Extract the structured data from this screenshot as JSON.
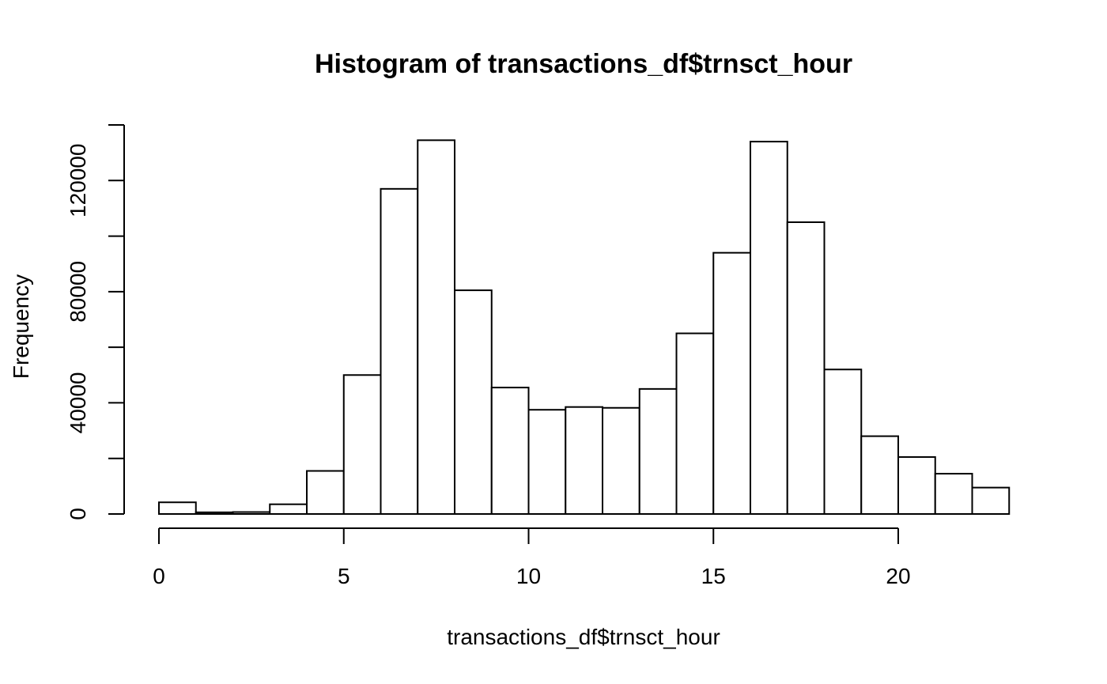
{
  "chart_data": {
    "type": "bar",
    "title": "Histogram of transactions_df$trnsct_hour",
    "xlabel": "transactions_df$trnsct_hour",
    "ylabel": "Frequency",
    "bin_edges": [
      0,
      1,
      2,
      3,
      4,
      5,
      6,
      7,
      8,
      9,
      10,
      11,
      12,
      13,
      14,
      15,
      16,
      17,
      18,
      19,
      20,
      21,
      22,
      23
    ],
    "values": [
      4200,
      600,
      700,
      3500,
      15500,
      50000,
      117000,
      134500,
      80500,
      45500,
      37500,
      38500,
      38200,
      45000,
      65000,
      94000,
      134000,
      105000,
      52000,
      28000,
      20500,
      14500,
      9500
    ],
    "xlim": [
      0,
      23
    ],
    "ylim": [
      0,
      140000
    ],
    "x_ticks": [
      0,
      5,
      10,
      15,
      20
    ],
    "x_tick_labels": [
      "0",
      "5",
      "10",
      "15",
      "20"
    ],
    "y_ticks": [
      0,
      20000,
      40000,
      60000,
      80000,
      100000,
      120000,
      140000
    ],
    "y_tick_labels": [
      "0",
      "",
      "40000",
      "",
      "80000",
      "",
      "120000",
      ""
    ],
    "grid": false,
    "colors": {
      "bar_fill": "#ffffff",
      "bar_stroke": "#000000"
    }
  }
}
